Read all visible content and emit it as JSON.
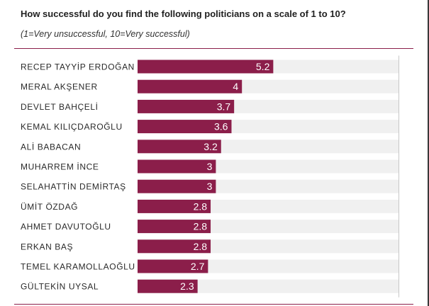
{
  "header": {
    "title": "How successful do you find the following politicians on a scale of 1 to 10?",
    "subtitle": "(1=Very unsuccessful, 10=Very successful)"
  },
  "colors": {
    "bar": "#8b1e4a",
    "track": "#f0f0f0",
    "rule": "#8b1e4a",
    "reference_line": "#c8c8c8"
  },
  "chart_data": {
    "type": "bar",
    "orientation": "horizontal",
    "categories": [
      "RECEP TAYYİP ERDOĞAN",
      "MERAL AKŞENER",
      "DEVLET BAHÇELİ",
      "KEMAL KILIÇDAROĞLU",
      "ALİ BABACAN",
      "MUHARREM İNCE",
      "SELAHATTİN DEMİRTAŞ",
      "ÜMİT ÖZDAĞ",
      "AHMET DAVUTOĞLU",
      "ERKAN BAŞ",
      "TEMEL KARAMOLLAOĞLU",
      "GÜLTEKİN UYSAL"
    ],
    "values": [
      5.2,
      4,
      3.7,
      3.6,
      3.2,
      3,
      3,
      2.8,
      2.8,
      2.8,
      2.7,
      2.3
    ],
    "value_labels": [
      "5.2",
      "4",
      "3.7",
      "3.6",
      "3.2",
      "3",
      "3",
      "2.8",
      "2.8",
      "2.8",
      "2.7",
      "2.3"
    ],
    "xlim": [
      0,
      10
    ],
    "reference_line": 10,
    "grid": false
  }
}
